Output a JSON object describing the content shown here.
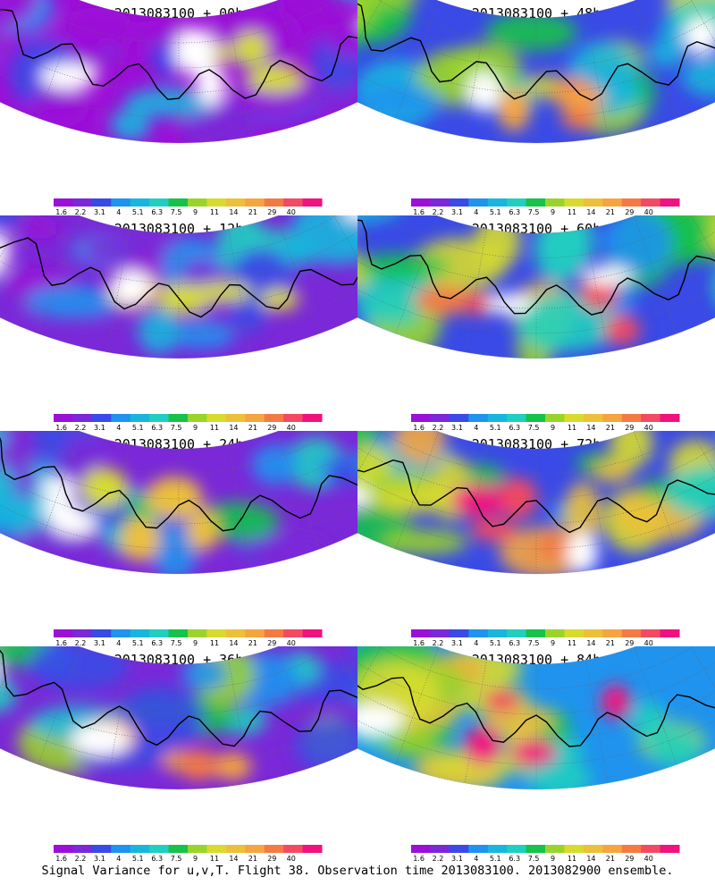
{
  "figure": {
    "caption": "Signal Variance for u,v,T. Flight 38. Observation time 2013083100. 2013082900 ensemble."
  },
  "colorbar": {
    "labels": [
      "1.6",
      "2.2",
      "3.1",
      "4",
      "5.1",
      "6.3",
      "7.5",
      "9",
      "11",
      "14",
      "21",
      "29",
      "40"
    ],
    "colors": [
      "#9b10d8",
      "#7a28d8",
      "#3a4ae6",
      "#1f93ee",
      "#18b6dd",
      "#20cfc0",
      "#16c24a",
      "#9ad42a",
      "#d6db2e",
      "#ecc03a",
      "#f5a540",
      "#f47a44",
      "#f24a62",
      "#f0127f"
    ]
  },
  "panels": [
    {
      "title": "2013083100 + 00h",
      "level": 0.15,
      "seed": 3
    },
    {
      "title": "2013083100 + 12h",
      "level": 0.25,
      "seed": 7
    },
    {
      "title": "2013083100 + 24h",
      "level": 0.35,
      "seed": 11
    },
    {
      "title": "2013083100 + 36h",
      "level": 0.45,
      "seed": 17
    },
    {
      "title": "2013083100 + 48h",
      "level": 0.55,
      "seed": 23
    },
    {
      "title": "2013083100 + 60h",
      "level": 0.62,
      "seed": 29
    },
    {
      "title": "2013083100 + 72h",
      "level": 0.7,
      "seed": 31
    },
    {
      "title": "2013083100 + 84h",
      "level": 0.78,
      "seed": 37
    }
  ]
}
